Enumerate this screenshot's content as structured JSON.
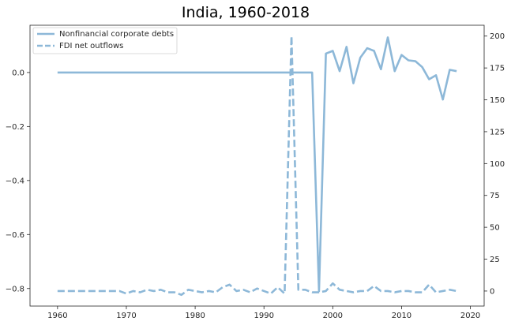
{
  "chart_data": {
    "type": "line",
    "title": "India, 1960-2018",
    "xlabel": "",
    "ylabel_left": "",
    "ylabel_right": "",
    "xlim": [
      1956,
      2022
    ],
    "ylim_left": [
      -0.865,
      0.175
    ],
    "ylim_right": [
      -11.8,
      208.5
    ],
    "x_ticks": [
      1960,
      1970,
      1980,
      1990,
      2000,
      2010,
      2020
    ],
    "x_tick_labels": [
      "1960",
      "1970",
      "1980",
      "1990",
      "2000",
      "2010",
      "2020"
    ],
    "y_left_ticks": [
      0.0,
      -0.2,
      -0.4,
      -0.6,
      -0.8
    ],
    "y_left_tick_labels": [
      "0.0",
      "−0.2",
      "−0.4",
      "−0.6",
      "−0.8"
    ],
    "y_right_ticks": [
      0,
      25,
      50,
      75,
      100,
      125,
      150,
      175,
      200
    ],
    "y_right_tick_labels": [
      "0",
      "25",
      "50",
      "75",
      "100",
      "125",
      "150",
      "175",
      "200"
    ],
    "color": "#8db8d8",
    "legend_position": "top-left",
    "series": [
      {
        "name": "Nonfinancial corporate debts",
        "axis": "left",
        "style": "solid",
        "x": [
          1960,
          1961,
          1962,
          1963,
          1964,
          1965,
          1966,
          1967,
          1968,
          1969,
          1970,
          1971,
          1972,
          1973,
          1974,
          1975,
          1976,
          1977,
          1978,
          1979,
          1980,
          1981,
          1982,
          1983,
          1984,
          1985,
          1986,
          1987,
          1988,
          1989,
          1990,
          1991,
          1992,
          1993,
          1994,
          1995,
          1996,
          1997,
          1998,
          1999,
          2000,
          2001,
          2002,
          2003,
          2004,
          2005,
          2006,
          2007,
          2008,
          2009,
          2010,
          2011,
          2012,
          2013,
          2014,
          2015,
          2016,
          2017,
          2018
        ],
        "values": [
          0,
          0,
          0,
          0,
          0,
          0,
          0,
          0,
          0,
          0,
          0,
          0,
          0,
          0,
          0,
          0,
          0,
          0,
          0,
          0,
          0,
          0,
          0,
          0,
          0,
          0,
          0,
          0,
          0,
          0,
          0,
          0,
          0,
          0,
          0,
          0,
          0,
          0,
          -0.81,
          0.07,
          0.08,
          0.005,
          0.095,
          -0.04,
          0.055,
          0.09,
          0.08,
          0.012,
          0.13,
          0.005,
          0.065,
          0.045,
          0.042,
          0.02,
          -0.025,
          -0.01,
          -0.1,
          0.01,
          0.005
        ]
      },
      {
        "name": "FDI net outflows",
        "axis": "right",
        "style": "dashed",
        "x": [
          1960,
          1961,
          1962,
          1963,
          1964,
          1965,
          1966,
          1967,
          1968,
          1969,
          1970,
          1971,
          1972,
          1973,
          1974,
          1975,
          1976,
          1977,
          1978,
          1979,
          1980,
          1981,
          1982,
          1983,
          1984,
          1985,
          1986,
          1987,
          1988,
          1989,
          1990,
          1991,
          1992,
          1993,
          1994,
          1995,
          1996,
          1997,
          1998,
          1999,
          2000,
          2001,
          2002,
          2003,
          2004,
          2005,
          2006,
          2007,
          2008,
          2009,
          2010,
          2011,
          2012,
          2013,
          2014,
          2015,
          2016,
          2017,
          2018
        ],
        "values": [
          0,
          0,
          0,
          0,
          0,
          0,
          0,
          0,
          0,
          0,
          -2,
          0,
          -1,
          1,
          0,
          1,
          -1,
          -1,
          -3,
          1,
          0,
          -1,
          0,
          -1,
          3,
          5,
          0,
          1,
          -1,
          2,
          0,
          -2,
          3,
          -2,
          200,
          1,
          1,
          -1,
          -1,
          0,
          6,
          1,
          0,
          -1,
          0,
          0,
          4,
          0,
          0,
          -1,
          0,
          0,
          -1,
          -1,
          5,
          -1,
          0,
          1,
          0
        ]
      }
    ]
  }
}
